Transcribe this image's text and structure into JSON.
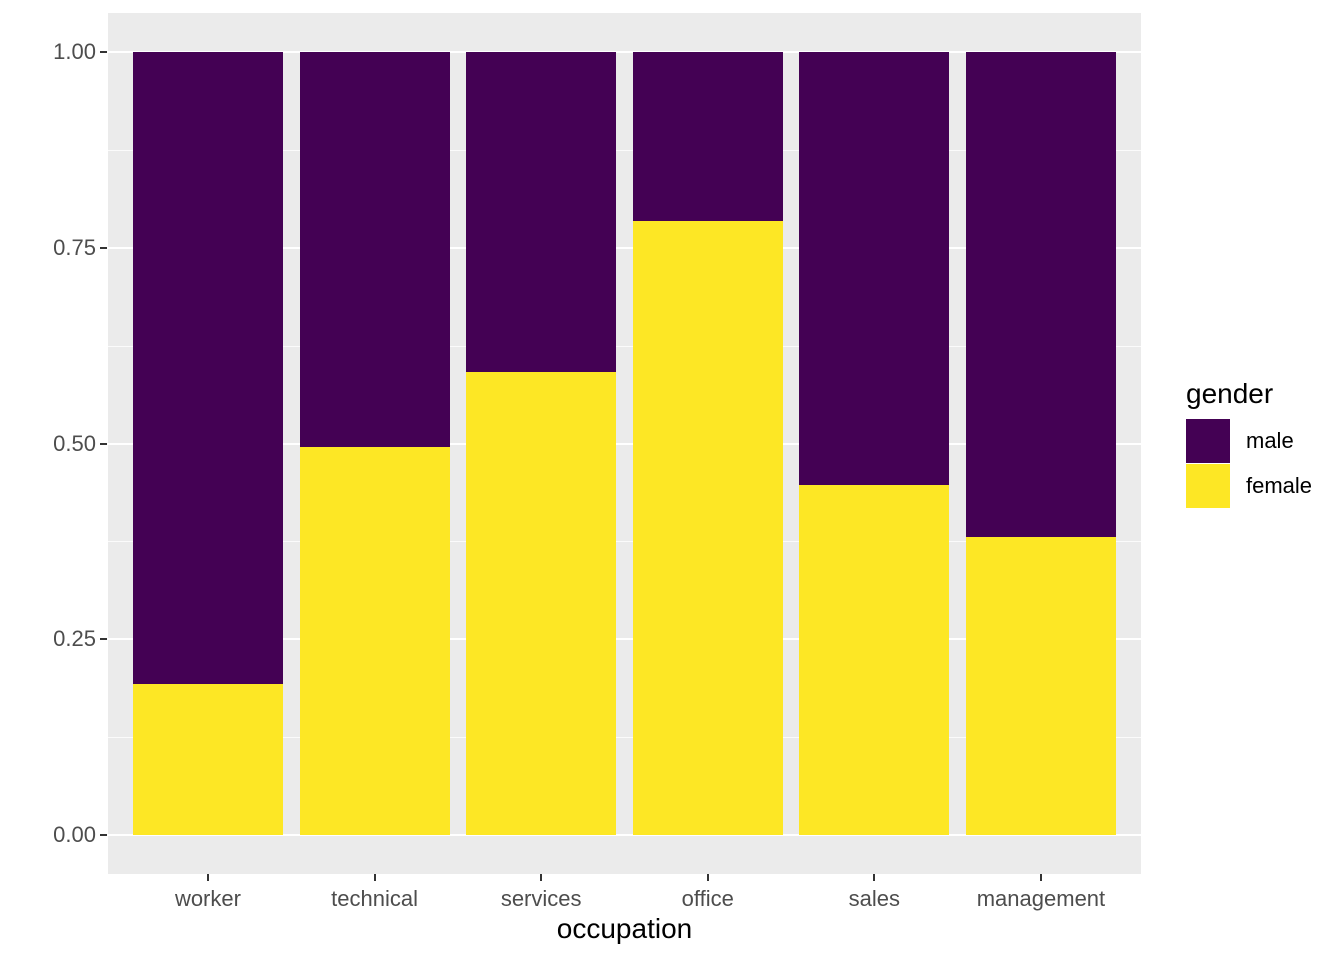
{
  "chart_data": {
    "type": "bar",
    "variant": "stacked-normalized",
    "title": "",
    "xlabel": "occupation",
    "ylabel": "",
    "categories": [
      "worker",
      "technical",
      "services",
      "office",
      "sales",
      "management"
    ],
    "series": [
      {
        "name": "male",
        "color": "#440154",
        "values": [
          0.807,
          0.505,
          0.409,
          0.216,
          0.553,
          0.619
        ]
      },
      {
        "name": "female",
        "color": "#FDE725",
        "values": [
          0.193,
          0.495,
          0.591,
          0.784,
          0.447,
          0.381
        ]
      }
    ],
    "ylim": [
      0,
      1
    ],
    "yticks": [
      0,
      0.25,
      0.5,
      0.75,
      1
    ],
    "ytick_labels": [
      "0.00",
      "0.25",
      "0.50",
      "0.75",
      "1.00"
    ],
    "yticks_minor": [
      0.125,
      0.375,
      0.625,
      0.875
    ],
    "grid": "white major+minor gridlines on grey panel",
    "legend": {
      "title": "gender",
      "position": "right",
      "entries": [
        {
          "label": "male",
          "color": "#440154"
        },
        {
          "label": "female",
          "color": "#FDE725"
        }
      ]
    },
    "style": {
      "panel_background": "#EBEBEB",
      "grid_color": "#FFFFFF",
      "tick_label_color": "#4D4D4D",
      "tick_mark_color": "#333333",
      "title_color": "#000000"
    }
  }
}
